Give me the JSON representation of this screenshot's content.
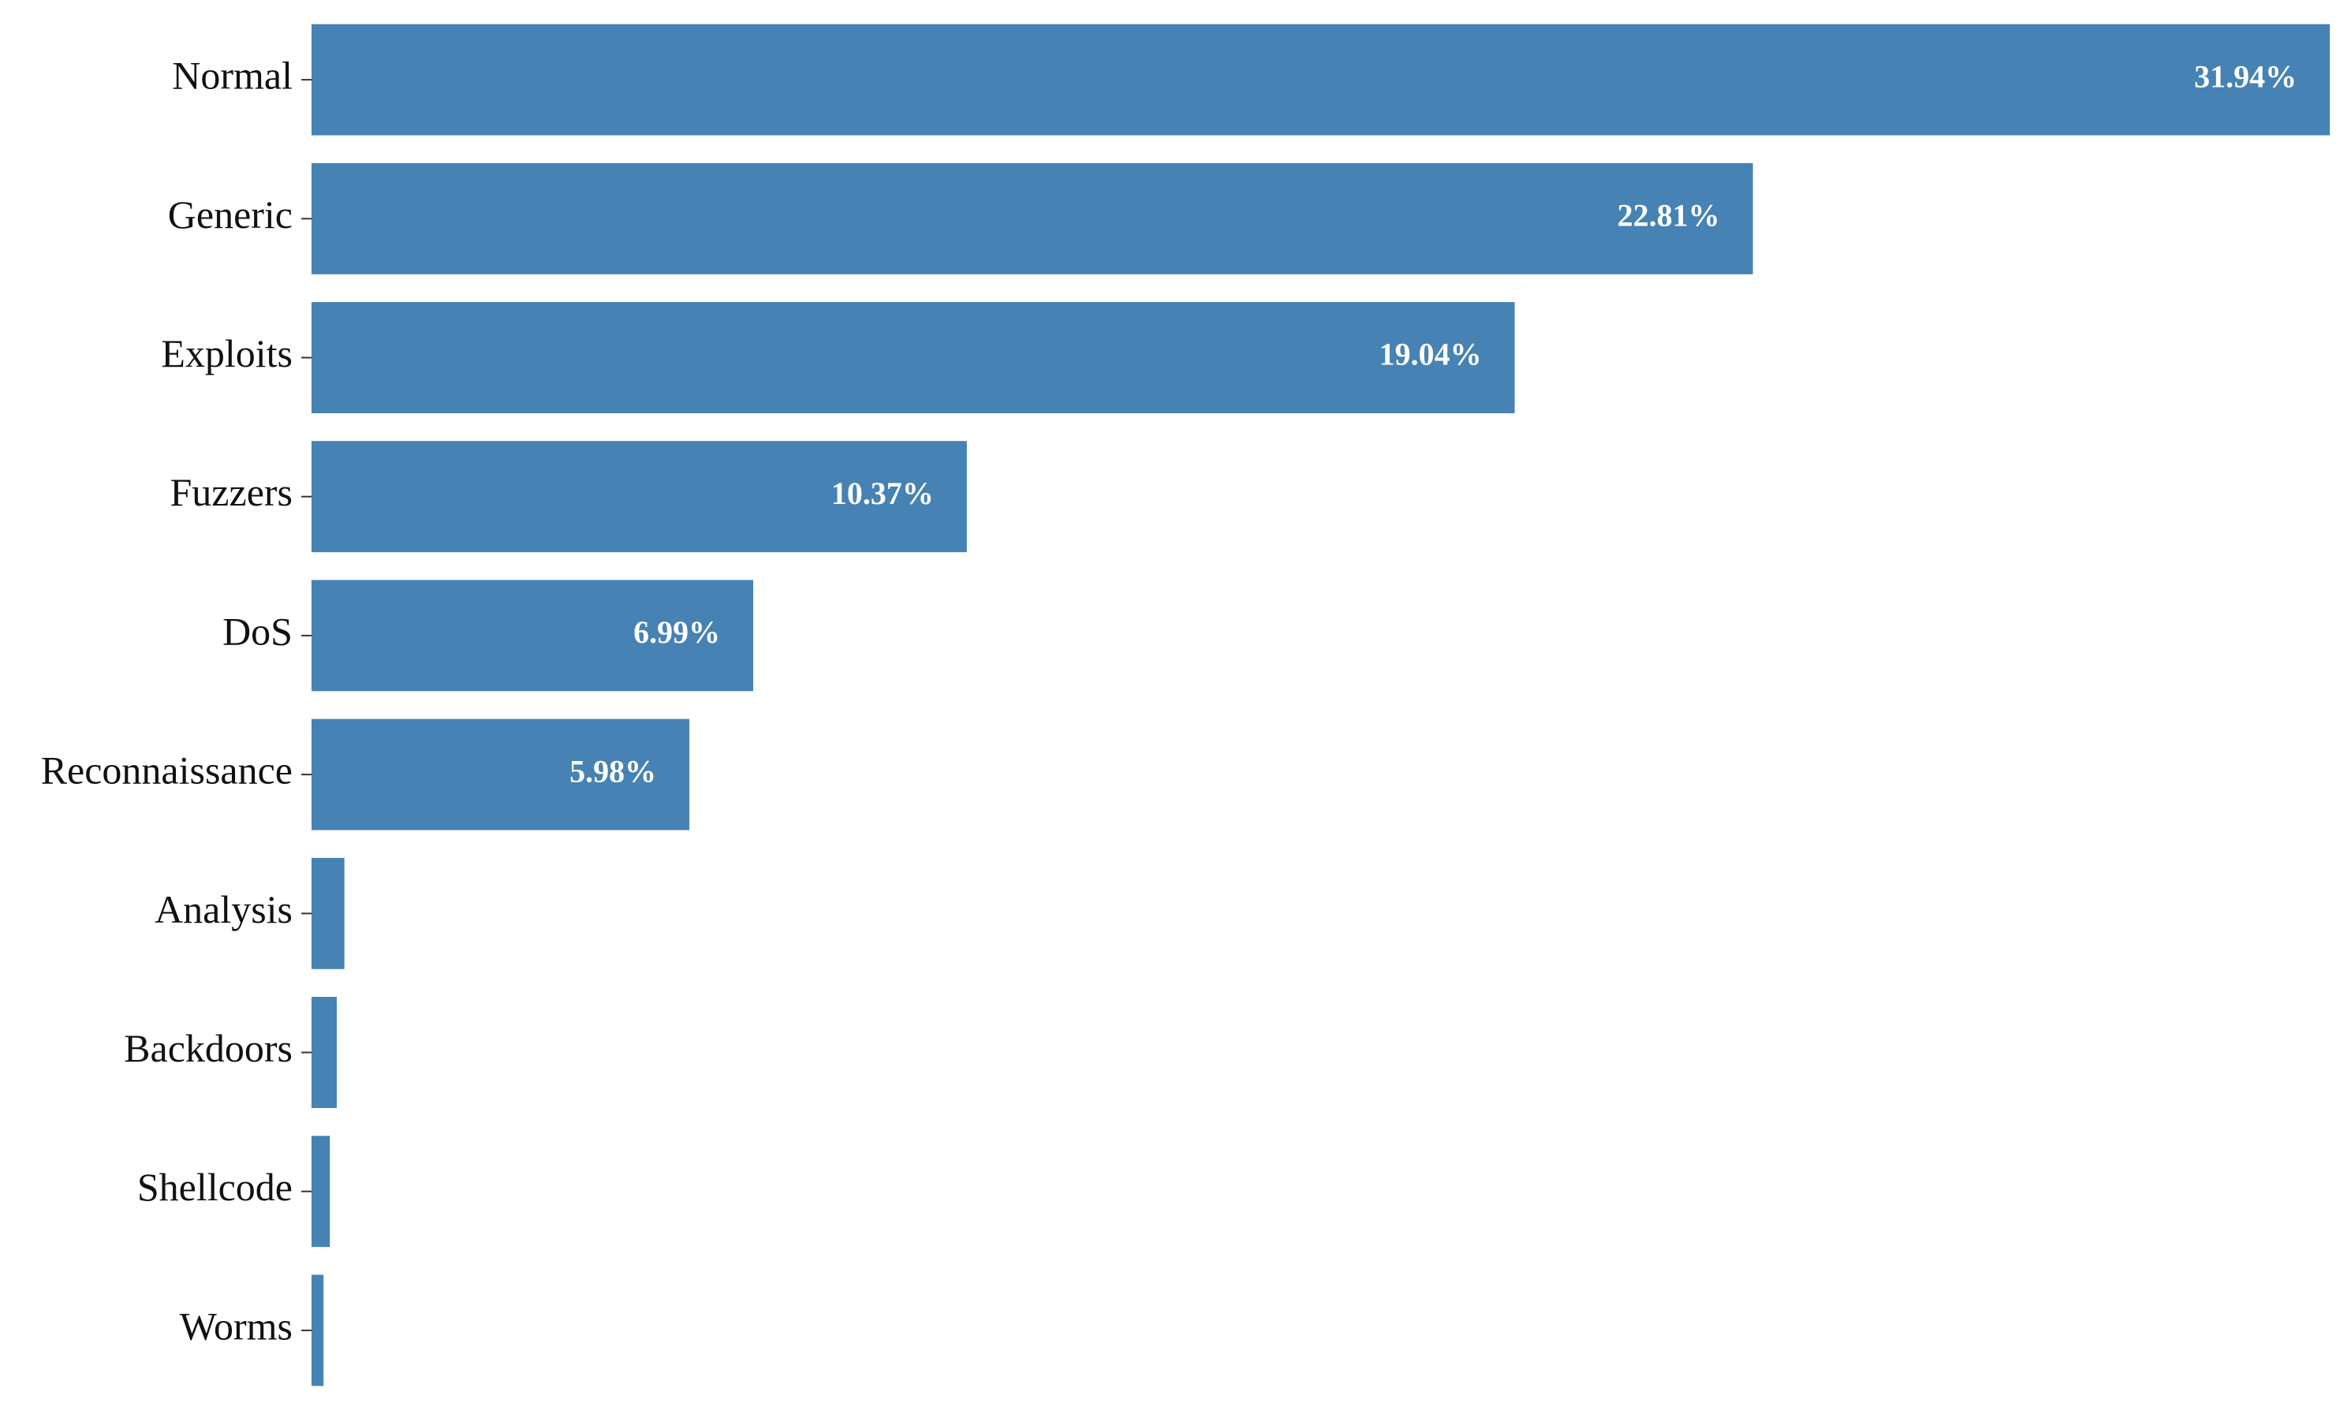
{
  "chart_data": {
    "type": "barh",
    "categories": [
      "Normal",
      "Generic",
      "Exploits",
      "Fuzzers",
      "DoS",
      "Reconnaissance",
      "Analysis",
      "Backdoors",
      "Shellcode",
      "Worms"
    ],
    "values": [
      31.94,
      22.81,
      19.04,
      10.37,
      6.99,
      5.98,
      0.52,
      0.4,
      0.29,
      0.19
    ],
    "value_labels": [
      "31.94%",
      "22.81%",
      "19.04%",
      "10.37%",
      "6.99%",
      "5.98%",
      null,
      null,
      null,
      null
    ],
    "color": "#4682b4",
    "xlim": [
      0,
      32.2
    ]
  }
}
